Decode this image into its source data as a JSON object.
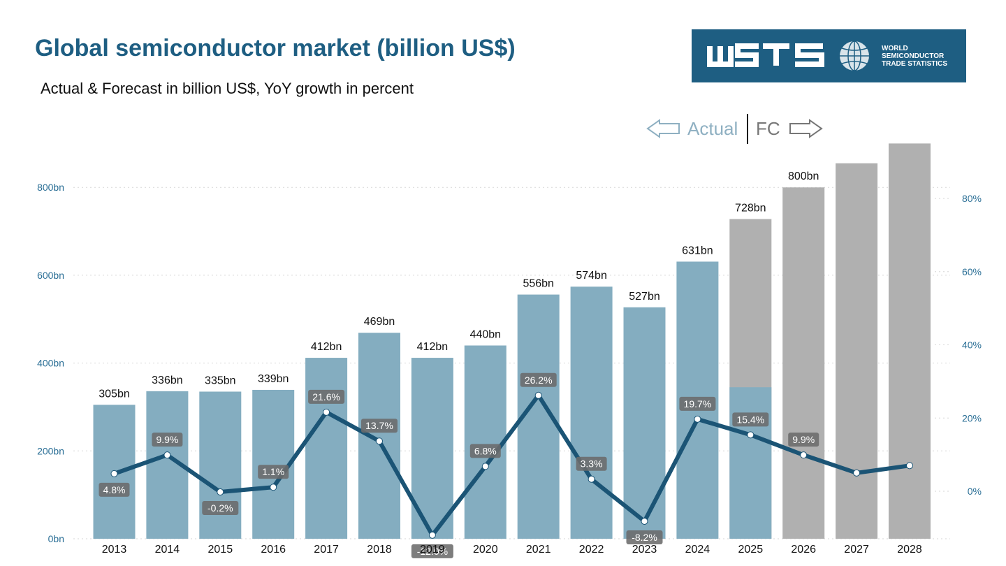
{
  "header": {
    "title": "Global semiconductor market (billion US$)",
    "subtitle": "Actual & Forecast in billion US$, YoY growth in percent"
  },
  "logo": {
    "wordmark": "WSTS",
    "lines": [
      "WORLD",
      "SEMICONDUCTOR",
      "TRADE STATISTICS"
    ]
  },
  "regions": {
    "actual": "Actual",
    "forecast": "FC"
  },
  "colors": {
    "title": "#1e5e82",
    "actual_bar": "#84adc0",
    "forecast_bar": "#b0b0b0",
    "growth_line": "#1b5475",
    "axis_label": "#2b6f96",
    "label_box": "#6b6b6b",
    "region_actual": "#8fb0c2",
    "region_forecast": "#777777",
    "logo_bg": "#1e5e82"
  },
  "chart_data": {
    "type": "bar",
    "categories": [
      "2013",
      "2014",
      "2015",
      "2016",
      "2017",
      "2018",
      "2019",
      "2020",
      "2021",
      "2022",
      "2023",
      "2024",
      "2025",
      "2026",
      "2027",
      "2028"
    ],
    "series": [
      {
        "values": [
          305,
          336,
          335,
          339,
          412,
          469,
          412,
          440,
          556,
          574,
          527,
          631,
          728,
          800,
          855,
          900
        ],
        "value_labels": [
          "305bn",
          "336bn",
          "335bn",
          "339bn",
          "412bn",
          "469bn",
          "412bn",
          "440bn",
          "556bn",
          "574bn",
          "527bn",
          "631bn",
          "728bn",
          "800bn",
          "",
          ""
        ],
        "forecast_from_index": 12,
        "forecast_2025_actual_part": 345,
        "axis": "left"
      },
      {
        "type": "line",
        "values": [
          4.8,
          9.9,
          -0.2,
          1.1,
          21.6,
          13.7,
          -12.0,
          6.8,
          26.2,
          3.3,
          -8.2,
          19.7,
          15.4,
          9.9,
          5.0,
          7.0
        ],
        "value_labels": [
          "4.8%",
          "9.9%",
          "-0.2%",
          "1.1%",
          "21.6%",
          "13.7%",
          "-12.0%",
          "6.8%",
          "26.2%",
          "3.3%",
          "-8.2%",
          "19.7%",
          "15.4%",
          "9.9%",
          "",
          ""
        ],
        "axis": "right"
      }
    ],
    "left_axis": {
      "ticks": [
        "0bn",
        "200bn",
        "400bn",
        "600bn",
        "800bn"
      ],
      "tick_values": [
        0,
        200,
        400,
        600,
        800
      ],
      "ylim": [
        0,
        900
      ]
    },
    "right_axis": {
      "ticks": [
        "0%",
        "20%",
        "40%",
        "60%",
        "80%"
      ],
      "tick_values": [
        0,
        20,
        40,
        60,
        80
      ],
      "ylim": [
        -12.5,
        95
      ]
    },
    "grid": true
  }
}
